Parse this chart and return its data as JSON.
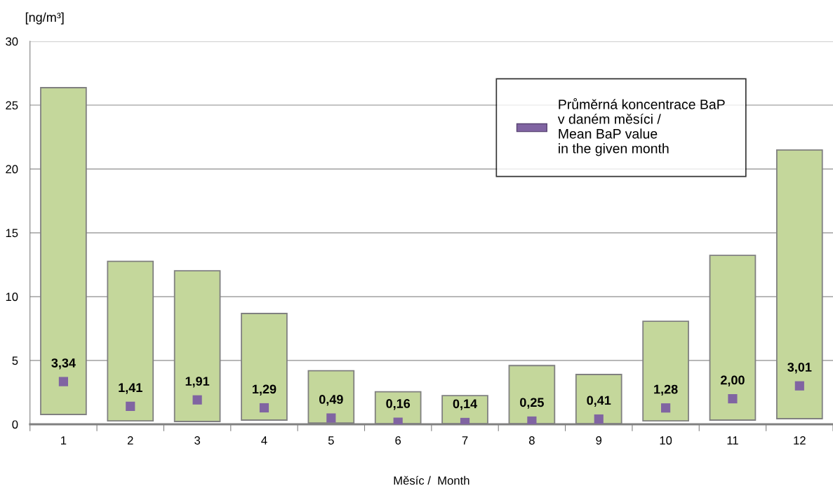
{
  "chart_data": {
    "type": "bar",
    "ylabel": "[ng/m³]",
    "xlabel": "Měsíc /  Month",
    "categories": [
      "1",
      "2",
      "3",
      "4",
      "5",
      "6",
      "7",
      "8",
      "9",
      "10",
      "11",
      "12"
    ],
    "series": [
      {
        "color": "#c4d79b",
        "base": [
          0.77,
          0.27,
          0.22,
          0.33,
          0.1,
          0.05,
          0.05,
          0.05,
          0.05,
          0.27,
          0.33,
          0.44
        ],
        "values": [
          25.6,
          12.5,
          11.8,
          8.35,
          4.1,
          2.5,
          2.2,
          4.55,
          3.85,
          7.8,
          12.9,
          21.05
        ]
      },
      {
        "type": "scatter",
        "x": [
          "1",
          "2",
          "3",
          "4",
          "5",
          "6",
          "7",
          "8",
          "9",
          "10",
          "11",
          "12"
        ],
        "name": "Průměrná koncentrace BaP\nv daném měsíci /\nMean BaP value\nin the given month",
        "color": "#8064a2",
        "values": [
          3.34,
          1.41,
          1.91,
          1.29,
          0.49,
          0.16,
          0.14,
          0.25,
          0.41,
          1.28,
          2.0,
          3.01
        ],
        "value_labels": [
          "3,34",
          "1,41",
          "1,91",
          "1,29",
          "0,49",
          "0,16",
          "0,14",
          "0,25",
          "0,41",
          "1,28",
          "2,00",
          "3,01"
        ]
      }
    ],
    "ylim": [
      0,
      30
    ],
    "yticks": [
      0,
      5,
      10,
      15,
      20,
      25,
      30
    ],
    "grid": "y",
    "legend": "top right",
    "marker": "square"
  }
}
